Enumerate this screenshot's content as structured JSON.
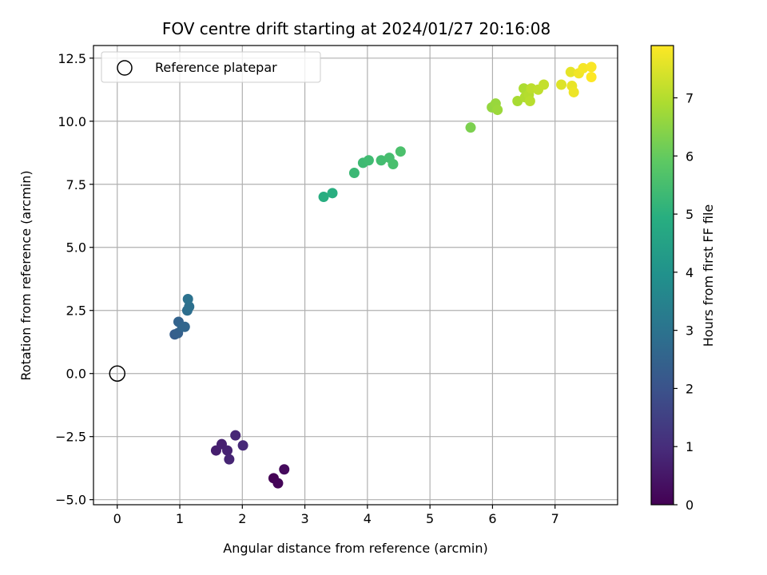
{
  "chart_data": {
    "type": "scatter",
    "title": "FOV centre drift starting at 2024/01/27 20:16:08",
    "xlabel": "Angular distance from reference (arcmin)",
    "ylabel": "Rotation from reference (arcmin)",
    "xlim": [
      -0.38,
      8.0
    ],
    "ylim": [
      -5.2,
      13.0
    ],
    "x_ticks": [
      0,
      1,
      2,
      3,
      4,
      5,
      6,
      7
    ],
    "y_ticks": [
      -5.0,
      -2.5,
      0.0,
      2.5,
      5.0,
      7.5,
      10.0,
      12.5
    ],
    "y_tick_labels": [
      "−5.0",
      "−2.5",
      "0.0",
      "2.5",
      "5.0",
      "7.5",
      "10.0",
      "12.5"
    ],
    "grid": true,
    "colormap": "viridis",
    "colorbar": {
      "label": "Hours from first FF file",
      "range": [
        0,
        7.9
      ],
      "ticks": [
        0,
        1,
        2,
        3,
        4,
        5,
        6,
        7
      ]
    },
    "legend": {
      "placement": "top-left",
      "entries": [
        {
          "label": "Reference platepar",
          "marker": "open-circle"
        }
      ]
    },
    "reference_point": {
      "x": 0.0,
      "y": 0.0
    },
    "points": [
      {
        "x": 2.5,
        "y": -4.15,
        "h": 0.05
      },
      {
        "x": 2.57,
        "y": -4.35,
        "h": 0.1
      },
      {
        "x": 2.67,
        "y": -3.8,
        "h": 0.2
      },
      {
        "x": 1.58,
        "y": -3.05,
        "h": 0.65
      },
      {
        "x": 1.67,
        "y": -2.8,
        "h": 0.7
      },
      {
        "x": 1.76,
        "y": -3.05,
        "h": 0.75
      },
      {
        "x": 1.79,
        "y": -3.4,
        "h": 0.8
      },
      {
        "x": 1.89,
        "y": -2.45,
        "h": 0.85
      },
      {
        "x": 2.01,
        "y": -2.85,
        "h": 0.9
      },
      {
        "x": 0.92,
        "y": 1.55,
        "h": 2.3
      },
      {
        "x": 0.97,
        "y": 1.6,
        "h": 2.4
      },
      {
        "x": 0.98,
        "y": 2.05,
        "h": 2.5
      },
      {
        "x": 1.04,
        "y": 1.85,
        "h": 2.55
      },
      {
        "x": 1.08,
        "y": 1.85,
        "h": 2.6
      },
      {
        "x": 1.12,
        "y": 2.5,
        "h": 2.85
      },
      {
        "x": 1.15,
        "y": 2.65,
        "h": 2.9
      },
      {
        "x": 1.13,
        "y": 2.95,
        "h": 2.95
      },
      {
        "x": 3.3,
        "y": 7.0,
        "h": 4.9
      },
      {
        "x": 3.44,
        "y": 7.15,
        "h": 4.95
      },
      {
        "x": 3.79,
        "y": 7.95,
        "h": 5.3
      },
      {
        "x": 3.93,
        "y": 8.35,
        "h": 5.35
      },
      {
        "x": 4.02,
        "y": 8.45,
        "h": 5.4
      },
      {
        "x": 4.22,
        "y": 8.45,
        "h": 5.45
      },
      {
        "x": 4.35,
        "y": 8.55,
        "h": 5.5
      },
      {
        "x": 4.41,
        "y": 8.3,
        "h": 5.55
      },
      {
        "x": 4.53,
        "y": 8.8,
        "h": 5.6
      },
      {
        "x": 5.65,
        "y": 9.75,
        "h": 6.3
      },
      {
        "x": 5.99,
        "y": 10.55,
        "h": 6.6
      },
      {
        "x": 6.05,
        "y": 10.7,
        "h": 6.65
      },
      {
        "x": 6.08,
        "y": 10.45,
        "h": 6.7
      },
      {
        "x": 6.4,
        "y": 10.8,
        "h": 6.85
      },
      {
        "x": 6.5,
        "y": 11.3,
        "h": 6.9
      },
      {
        "x": 6.52,
        "y": 10.95,
        "h": 6.95
      },
      {
        "x": 6.58,
        "y": 11.05,
        "h": 7.0
      },
      {
        "x": 6.6,
        "y": 10.8,
        "h": 7.05
      },
      {
        "x": 6.62,
        "y": 11.3,
        "h": 7.1
      },
      {
        "x": 6.73,
        "y": 11.25,
        "h": 7.15
      },
      {
        "x": 6.82,
        "y": 11.45,
        "h": 7.2
      },
      {
        "x": 7.1,
        "y": 11.45,
        "h": 7.5
      },
      {
        "x": 7.25,
        "y": 11.95,
        "h": 7.6
      },
      {
        "x": 7.27,
        "y": 11.4,
        "h": 7.65
      },
      {
        "x": 7.3,
        "y": 11.15,
        "h": 7.7
      },
      {
        "x": 7.38,
        "y": 11.9,
        "h": 7.75
      },
      {
        "x": 7.45,
        "y": 12.1,
        "h": 7.8
      },
      {
        "x": 7.58,
        "y": 12.15,
        "h": 7.85
      },
      {
        "x": 7.58,
        "y": 11.75,
        "h": 7.9
      }
    ]
  }
}
